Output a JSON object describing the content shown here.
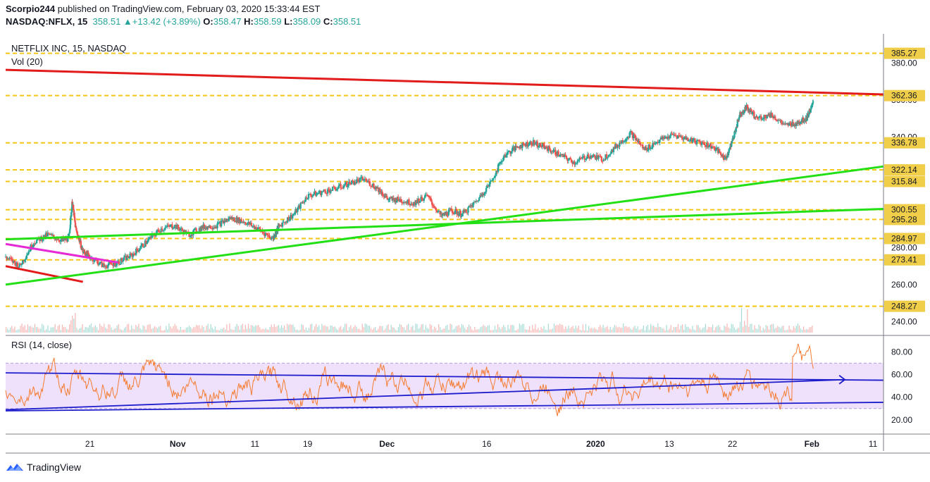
{
  "header": {
    "author": "Scorpio244",
    "published_text": "published on TradingView.com, February 03, 2020 15:33:44 EST",
    "symbol": "NASDAQ:NFLX, 15",
    "last": "358.51",
    "change": "+13.42 (+3.89%)",
    "o_label": "O:",
    "o_value": "358.47",
    "h_label": "H:",
    "h_value": "358.59",
    "l_label": "L:",
    "l_value": "358.09",
    "c_label": "C:",
    "c_value": "358.51"
  },
  "footer": {
    "brand": "TradingView",
    "logo_icon": "tradingview-logo-icon"
  },
  "colors": {
    "up": "#26a69a",
    "down": "#ef5350",
    "hline": "#f5c518",
    "red_line": "#e21b1b",
    "green_line": "#23e016",
    "magenta_line": "#e62ad6",
    "rsi_line": "#f57c31",
    "rsi_band": "#e9d7fb",
    "blue_line": "#1d1dcc",
    "price_label_bg": "#f0ce4a"
  },
  "chart_data": [
    {
      "type": "line",
      "title": "NETFLIX INC, 15, NASDAQ",
      "subtitle": "Vol (20)",
      "ylim": [
        234,
        392
      ],
      "y_ticks": [
        "380.00",
        "360.00",
        "340.00",
        "300.00",
        "280.00",
        "260.00",
        "240.00"
      ],
      "x_ticks": [
        "21",
        "Nov",
        "11",
        "19",
        "Dec",
        "16",
        "2020",
        "13",
        "22",
        "Feb",
        "11"
      ],
      "x_tick_positions": [
        0.12,
        0.245,
        0.355,
        0.43,
        0.543,
        0.685,
        0.84,
        0.945,
        1.035,
        1.148,
        1.235
      ],
      "horizontal_levels": [
        {
          "value": 385.27,
          "label": "385.27"
        },
        {
          "value": 362.36,
          "label": "362.36"
        },
        {
          "value": 336.78,
          "label": "336.78"
        },
        {
          "value": 322.14,
          "label": "322.14"
        },
        {
          "value": 315.84,
          "label": "315.84"
        },
        {
          "value": 300.55,
          "label": "300.55"
        },
        {
          "value": 295.28,
          "label": "295.28"
        },
        {
          "value": 284.97,
          "label": "284.97"
        },
        {
          "value": 273.41,
          "label": "273.41"
        },
        {
          "value": 248.27,
          "label": "248.27"
        }
      ],
      "trend_lines": [
        {
          "name": "red-resistance",
          "color": "red_line",
          "from": [
            0.0,
            376.3
          ],
          "to": [
            1.25,
            363.0
          ]
        },
        {
          "name": "red-short",
          "color": "red_line",
          "from": [
            0.0,
            270.0
          ],
          "to": [
            0.11,
            261.5
          ]
        },
        {
          "name": "magenta-short",
          "color": "magenta_line",
          "from": [
            0.0,
            282.0
          ],
          "to": [
            0.16,
            272.0
          ]
        },
        {
          "name": "green-steep",
          "color": "green_line",
          "from": [
            0.0,
            260.0
          ],
          "to": [
            1.25,
            324.0
          ]
        },
        {
          "name": "green-flat",
          "color": "green_line",
          "from": [
            0.0,
            284.5
          ],
          "to": [
            1.25,
            301.0
          ]
        }
      ],
      "series": [
        {
          "name": "NFLX",
          "x": [
            0.0,
            0.02,
            0.04,
            0.06,
            0.08,
            0.09,
            0.095,
            0.1,
            0.11,
            0.12,
            0.14,
            0.16,
            0.18,
            0.2,
            0.22,
            0.24,
            0.26,
            0.28,
            0.3,
            0.32,
            0.34,
            0.36,
            0.38,
            0.39,
            0.41,
            0.43,
            0.45,
            0.47,
            0.49,
            0.51,
            0.53,
            0.545,
            0.56,
            0.58,
            0.6,
            0.62,
            0.635,
            0.65,
            0.67,
            0.69,
            0.71,
            0.73,
            0.75,
            0.77,
            0.79,
            0.81,
            0.83,
            0.85,
            0.87,
            0.89,
            0.91,
            0.93,
            0.95,
            0.97,
            0.99,
            1.01,
            1.025,
            1.035,
            1.045,
            1.055,
            1.07,
            1.09,
            1.11,
            1.13,
            1.14,
            1.15
          ],
          "values": [
            275,
            270,
            283,
            287,
            284,
            285,
            305,
            290,
            278,
            275,
            270,
            272,
            276,
            283,
            290,
            292,
            287,
            291,
            292,
            296,
            294,
            290,
            285,
            292,
            298,
            308,
            310,
            312,
            315,
            317,
            312,
            306,
            306,
            304,
            308,
            297,
            300,
            298,
            305,
            315,
            330,
            335,
            337,
            334,
            330,
            326,
            330,
            328,
            335,
            342,
            333,
            338,
            341,
            339,
            337,
            334,
            328,
            338,
            352,
            356,
            350,
            352,
            346,
            348,
            350,
            358
          ]
        }
      ]
    },
    {
      "type": "line",
      "title": "RSI (14, close)",
      "ylim": [
        10,
        92
      ],
      "y_ticks": [
        "80.00",
        "60.00",
        "40.00",
        "20.00"
      ],
      "band": [
        30,
        70
      ],
      "trend_lines": [
        {
          "name": "blue-upper",
          "color": "blue_line",
          "from": [
            0.0,
            61.5
          ],
          "to": [
            1.25,
            55.0
          ]
        },
        {
          "name": "blue-rising",
          "color": "blue_line",
          "from": [
            0.0,
            29.0
          ],
          "to": [
            1.195,
            55.5
          ]
        },
        {
          "name": "blue-lower",
          "color": "blue_line",
          "from": [
            0.0,
            28.0
          ],
          "to": [
            1.25,
            35.5
          ]
        }
      ]
    }
  ]
}
